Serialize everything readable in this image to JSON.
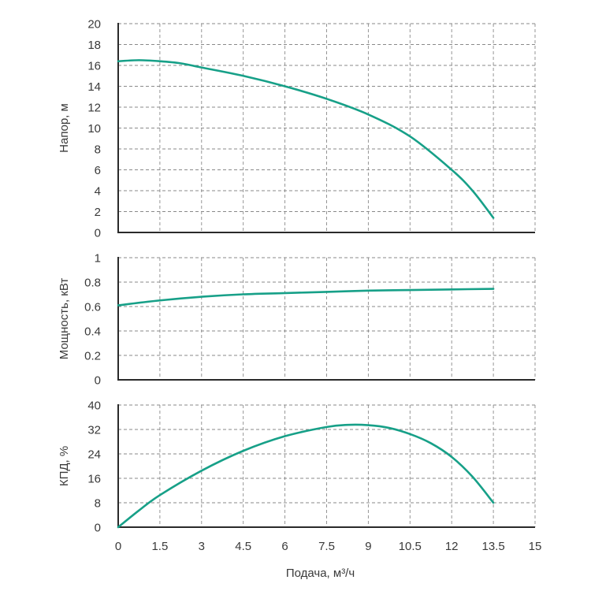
{
  "chart_data": [
    {
      "type": "line",
      "ylabel": "Напор, м",
      "xlim": [
        0,
        15
      ],
      "ylim": [
        0,
        20
      ],
      "yticks": [
        "0",
        "2",
        "4",
        "6",
        "8",
        "10",
        "12",
        "14",
        "16",
        "18",
        "20"
      ],
      "grid": true,
      "series": [
        {
          "color": "#17a088",
          "x": [
            0,
            0.75,
            1.5,
            2.25,
            3,
            4.5,
            6,
            7.5,
            9,
            10.5,
            12,
            12.75,
            13.5
          ],
          "y": [
            16.4,
            16.5,
            16.4,
            16.2,
            15.8,
            15.0,
            14.0,
            12.8,
            11.3,
            9.2,
            6.0,
            4.0,
            1.4
          ]
        }
      ]
    },
    {
      "type": "line",
      "ylabel": "Мощность, кВт",
      "xlim": [
        0,
        15
      ],
      "ylim": [
        0,
        1
      ],
      "yticks": [
        "0",
        "0.2",
        "0.4",
        "0.6",
        "0.8",
        "1"
      ],
      "grid": true,
      "series": [
        {
          "color": "#17a088",
          "x": [
            0,
            1.5,
            3,
            4.5,
            6,
            7.5,
            9,
            10.5,
            12,
            13.5
          ],
          "y": [
            0.61,
            0.65,
            0.68,
            0.7,
            0.71,
            0.72,
            0.73,
            0.735,
            0.74,
            0.745
          ]
        }
      ]
    },
    {
      "type": "line",
      "ylabel": "КПД, %",
      "xlabel": "Подача, м³/ч",
      "xlim": [
        0,
        15
      ],
      "ylim": [
        0,
        40
      ],
      "xticks": [
        "0",
        "1.5",
        "3",
        "4.5",
        "6",
        "7.5",
        "9",
        "10.5",
        "12",
        "13.5",
        "15"
      ],
      "yticks": [
        "0",
        "8",
        "16",
        "24",
        "32",
        "40"
      ],
      "grid": true,
      "series": [
        {
          "color": "#17a088",
          "x": [
            0,
            0.75,
            1.5,
            3,
            4.5,
            6,
            7.5,
            8.25,
            9,
            9.75,
            10.5,
            11.25,
            12,
            12.75,
            13.5
          ],
          "y": [
            0,
            5.5,
            10.5,
            18.5,
            25.0,
            29.8,
            32.8,
            33.5,
            33.4,
            32.5,
            30.5,
            27.5,
            23.0,
            16.5,
            8.0
          ]
        }
      ]
    }
  ]
}
